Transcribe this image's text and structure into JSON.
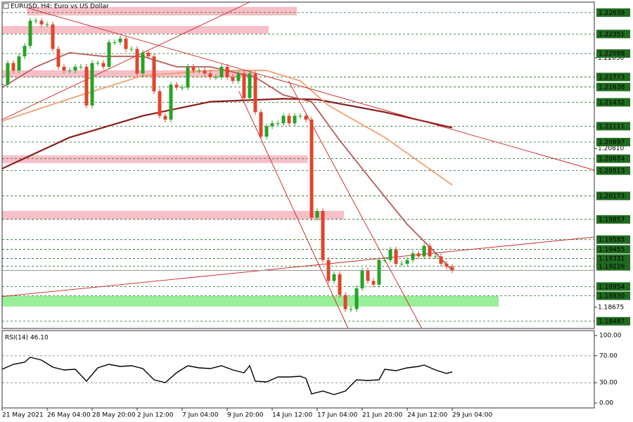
{
  "chart_data": {
    "type": "candlestick",
    "title": "EURUSD, H4:  Euro vs US Dollar",
    "xlim": [
      0,
      105.25
    ],
    "ylim": [
      1.1839,
      1.2278
    ],
    "up_color": "#26a326",
    "down_color": "#e0452c",
    "values": [
      1.2167,
      1.2196,
      1.2186,
      1.2205,
      1.2219,
      1.2253,
      1.2253,
      1.2248,
      1.2248,
      1.2215,
      1.2191,
      1.2186,
      1.2186,
      1.2191,
      1.2191,
      1.2139,
      1.2196,
      1.2196,
      1.2191,
      1.2224,
      1.2224,
      1.2229,
      1.2215,
      1.2215,
      1.2182,
      1.221,
      1.2205,
      1.2158,
      1.2125,
      1.212,
      1.2167,
      1.2163,
      1.2163,
      1.2191,
      1.2186,
      1.2186,
      1.2182,
      1.2177,
      1.2177,
      1.2191,
      1.2177,
      1.2172,
      1.2182,
      1.2149,
      1.2182,
      1.213,
      1.2097,
      1.2111,
      1.2115,
      1.2115,
      1.2125,
      1.2115,
      1.2125,
      1.2125,
      1.212,
      1.1988,
      1.1997,
      1.1931,
      1.1903,
      1.1912,
      1.1884,
      1.1865,
      1.1865,
      1.1893,
      1.1917,
      1.1903,
      1.1898,
      1.1931,
      1.1931,
      1.1945,
      1.1926,
      1.1926,
      1.1931,
      1.194,
      1.1936,
      1.195,
      1.1936,
      1.1936,
      1.1926,
      1.1922,
      1.1917
    ],
    "xticks": [
      {
        "value": 0,
        "label": "21 May 2021"
      },
      {
        "value": 8,
        "label": "26 May 04:00"
      },
      {
        "value": 16,
        "label": "28 May 20:00"
      },
      {
        "value": 24,
        "label": "2 Jun 12:00"
      },
      {
        "value": 32,
        "label": "7 Jun 04:00"
      },
      {
        "value": 40,
        "label": "9 Jun 20:00"
      },
      {
        "value": 48,
        "label": "14 Jun 12:00"
      },
      {
        "value": 56,
        "label": "17 Jun 04:00"
      },
      {
        "value": 64,
        "label": "21 Jun 20:00"
      },
      {
        "value": 72,
        "label": "24 Jun 12:00"
      },
      {
        "value": 80,
        "label": "29 Jun 04:00"
      }
    ],
    "yticks": [
      1.18675,
      {
        "value": 1.2081,
        "label": "1.20810"
      },
      {
        "value": 1.2203,
        "label": "1.22030"
      }
    ],
    "levels": [
      1.22639,
      1.22351,
      1.22088,
      1.21773,
      1.21638,
      1.21432,
      1.21111,
      1.20897,
      1.20674,
      1.20513,
      1.20173,
      1.19857,
      1.19585,
      1.19455,
      1.19331,
      1.19226,
      1.18954,
      {
        "value": 1.1883,
        "label": "1.18830"
      },
      1.18487
    ],
    "level_color": "#1f6b1f",
    "moving_averages": [
      {
        "color": "#8b1a1a",
        "x": [
          0,
          12,
          25,
          37,
          50,
          56,
          68,
          80
        ],
        "values": [
          1.2054,
          1.2096,
          1.2125,
          1.2144,
          1.2148,
          1.2147,
          1.213,
          1.2109
        ]
      },
      {
        "color": "#f4a070",
        "x": [
          0,
          12,
          25,
          37,
          47,
          53,
          58,
          68,
          80
        ],
        "values": [
          1.2118,
          1.2148,
          1.2179,
          1.2186,
          1.2186,
          1.2172,
          1.2139,
          1.2096,
          1.2032
        ]
      },
      {
        "color": "#b85a5a",
        "x": [
          0,
          6,
          12,
          18,
          25,
          31,
          37,
          45,
          50,
          55,
          60,
          66,
          72,
          77,
          80
        ],
        "values": [
          1.2163,
          1.2191,
          1.221,
          1.2205,
          1.2205,
          1.2191,
          1.2191,
          1.2177,
          1.2153,
          1.2144,
          1.2092,
          1.2035,
          1.1979,
          1.1941,
          1.1917
        ]
      }
    ],
    "trendlines": [
      {
        "color": "#cc2020",
        "x": [
          4.6,
          105.25
        ],
        "values": [
          1.227,
          1.2052
        ]
      },
      {
        "color": "#cc2020",
        "x": [
          0,
          44
        ],
        "values": [
          1.212,
          1.2278
        ]
      },
      {
        "color": "#cc2020",
        "x": [
          0,
          105.25
        ],
        "values": [
          1.1882,
          1.1962
        ]
      },
      {
        "color": "#cc2020",
        "x": [
          42.1,
          61.5
        ],
        "values": [
          1.2158,
          1.1839
        ]
      },
      {
        "color": "#cc2020",
        "x": [
          50.9,
          74.6
        ],
        "values": [
          1.2172,
          1.1839
        ]
      }
    ],
    "zones": [
      {
        "color": "#f7bfc8",
        "x": [
          4.4,
          52.4
        ],
        "values": [
          1.22601,
          1.22715
        ]
      },
      {
        "color": "#f7bfc8",
        "x": [
          0,
          47.4
        ],
        "values": [
          1.22355,
          1.22459
        ]
      },
      {
        "color": "#f7bfc8",
        "x": [
          0,
          44.6
        ],
        "values": [
          1.21769,
          1.21863
        ]
      },
      {
        "color": "#f7bfc8",
        "x": [
          0,
          54.25
        ],
        "values": [
          1.20615,
          1.20719
        ]
      },
      {
        "color": "#f7bfc8",
        "x": [
          0,
          60.75
        ],
        "values": [
          1.19858,
          1.19972
        ]
      },
      {
        "color": "#99ee99",
        "x": [
          0,
          88.25
        ],
        "values": [
          1.18685,
          1.18827
        ]
      }
    ],
    "rsi": {
      "title": "RSI(14) 46.10",
      "color": "#000000",
      "ylim": [
        0,
        100
      ],
      "yticks": [
        {
          "value": 100,
          "label": "100.00"
        },
        {
          "value": 70,
          "label": "70.00"
        },
        {
          "value": 30,
          "label": "30.00"
        },
        {
          "value": 0,
          "label": "0.00"
        }
      ],
      "x": [
        0,
        2,
        4,
        5,
        7,
        9,
        11,
        13,
        15,
        17,
        19,
        21,
        23,
        25,
        27,
        29,
        31,
        33,
        35,
        37,
        39,
        41,
        43,
        44,
        45,
        47,
        49,
        51,
        53,
        54,
        55,
        57,
        59,
        61,
        63,
        65,
        67,
        68,
        70,
        72,
        74,
        75,
        77,
        79,
        80
      ],
      "values": [
        50.0,
        57.3,
        60.4,
        67.7,
        63.5,
        53.1,
        49.0,
        50.0,
        32.3,
        52.1,
        57.3,
        54.2,
        55.2,
        51.0,
        34.4,
        30.2,
        44.8,
        55.2,
        52.1,
        51.0,
        55.2,
        49.0,
        44.8,
        55.2,
        32.3,
        31.3,
        38.5,
        38.5,
        39.6,
        36.5,
        13.5,
        17.7,
        12.5,
        17.7,
        34.4,
        33.3,
        34.4,
        50.0,
        47.9,
        52.1,
        54.2,
        56.3,
        49.0,
        43.8,
        46.1
      ]
    }
  }
}
